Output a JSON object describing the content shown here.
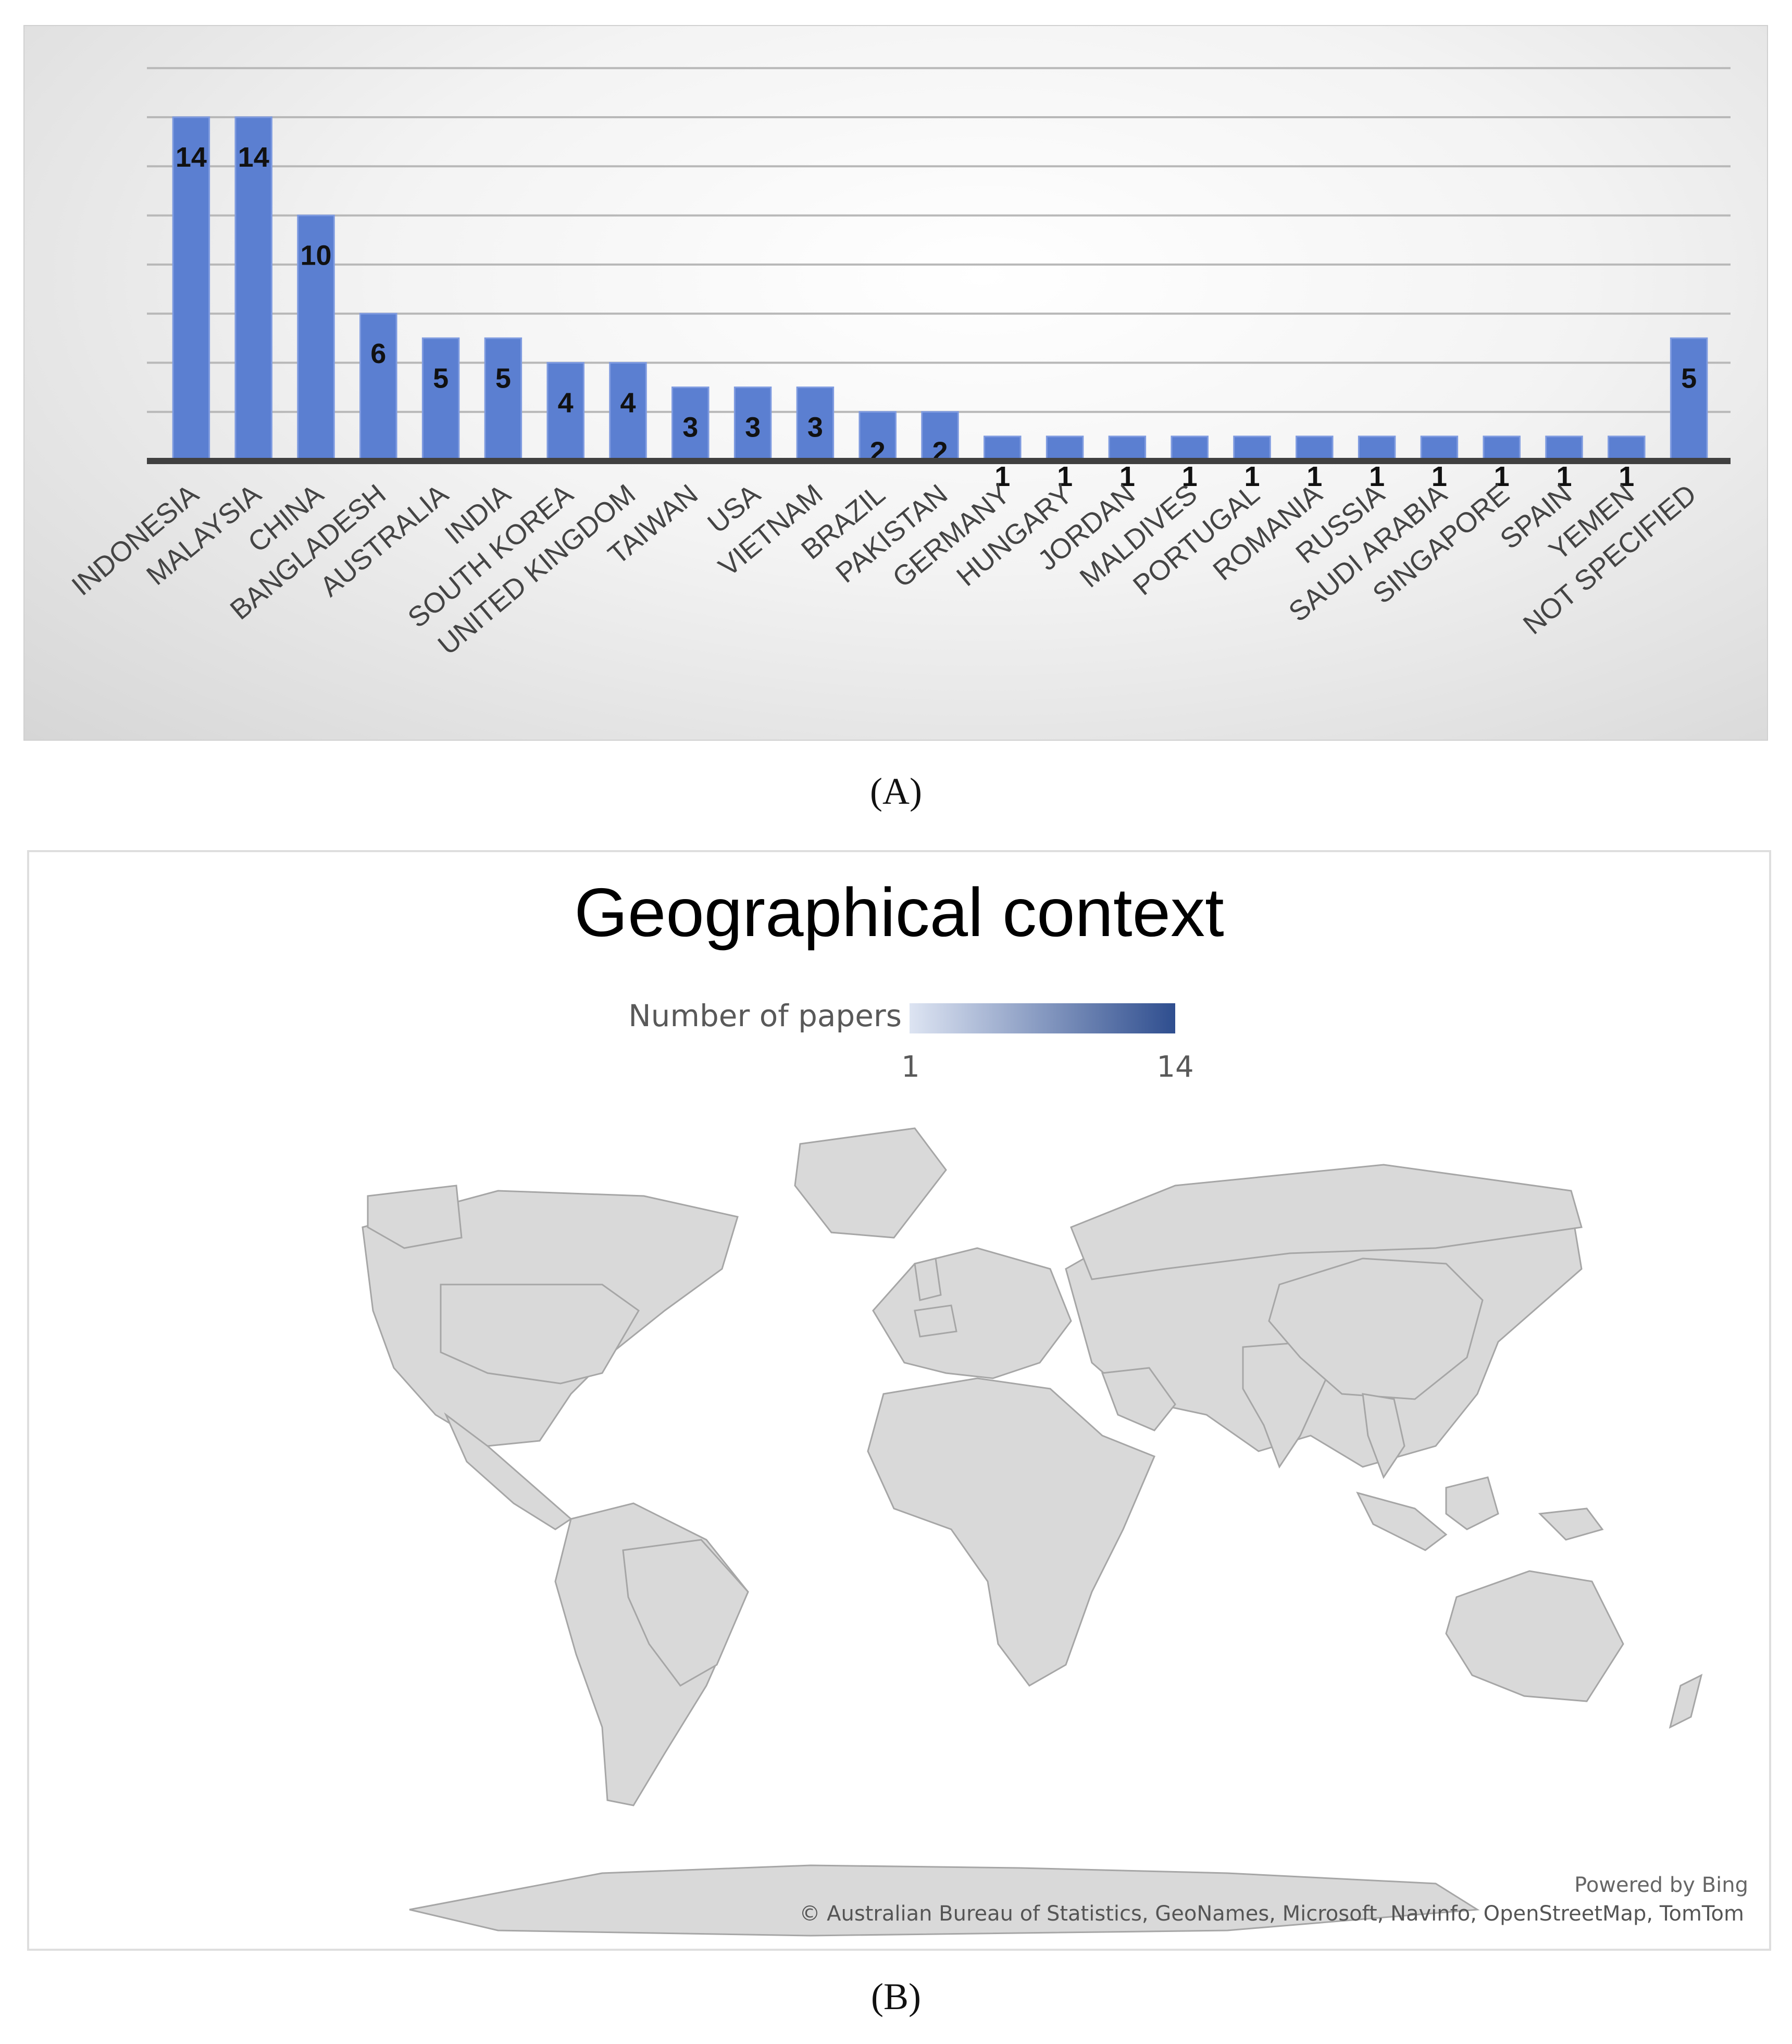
{
  "panel_a": {
    "caption": "(A)"
  },
  "panel_b": {
    "caption": "(B)",
    "title": "Geographical context",
    "legend": {
      "label": "Number of papers",
      "min": "1",
      "max": "14",
      "color_low": "#dde4f2",
      "color_high": "#2f4e8f"
    },
    "powered_by": "Powered by Bing",
    "credits": "© Australian Bureau of Statistics, GeoNames, Microsoft, Navinfo, OpenStreetMap, TomTom",
    "regions": [
      {
        "name": "INDONESIA",
        "value": 14
      },
      {
        "name": "MALAYSIA",
        "value": 14
      },
      {
        "name": "CHINA",
        "value": 10
      },
      {
        "name": "BANGLADESH",
        "value": 6
      },
      {
        "name": "AUSTRALIA",
        "value": 5
      },
      {
        "name": "INDIA",
        "value": 5
      },
      {
        "name": "SOUTH KOREA",
        "value": 4
      },
      {
        "name": "UNITED KINGDOM",
        "value": 4
      },
      {
        "name": "TAIWAN",
        "value": 3
      },
      {
        "name": "USA",
        "value": 3
      },
      {
        "name": "VIETNAM",
        "value": 3
      },
      {
        "name": "BRAZIL",
        "value": 2
      },
      {
        "name": "PAKISTAN",
        "value": 2
      },
      {
        "name": "RUSSIA",
        "value": 1
      },
      {
        "name": "SAUDI ARABIA",
        "value": 1
      },
      {
        "name": "YEMEN",
        "value": 1
      },
      {
        "name": "SPAIN",
        "value": 1
      }
    ]
  },
  "chart_data": {
    "type": "bar",
    "title": "",
    "xlabel": "",
    "ylabel": "",
    "ylim": [
      0,
      14
    ],
    "grid": true,
    "bar_color": "#5b7fd1",
    "categories": [
      "INDONESIA",
      "MALAYSIA",
      "CHINA",
      "BANGLADESH",
      "AUSTRALIA",
      "INDIA",
      "SOUTH KOREA",
      "UNITED KINGDOM",
      "TAIWAN",
      "USA",
      "VIETNAM",
      "BRAZIL",
      "PAKISTAN",
      "GERMANY",
      "HUNGARY",
      "JORDAN",
      "MALDIVES",
      "PORTUGAL",
      "ROMANIA",
      "RUSSIA",
      "SAUDI ARABIA",
      "SINGAPORE",
      "SPAIN",
      "YEMEN",
      "NOT SPECIFIED"
    ],
    "values": [
      14,
      14,
      10,
      6,
      5,
      5,
      4,
      4,
      3,
      3,
      3,
      2,
      2,
      1,
      1,
      1,
      1,
      1,
      1,
      1,
      1,
      1,
      1,
      1,
      5
    ],
    "data_labels": [
      "14",
      "14",
      "10",
      "6",
      "5",
      "5",
      "4",
      "4",
      "3",
      "3",
      "3",
      "2",
      "2",
      "1",
      "1",
      "1",
      "1",
      "1",
      "1",
      "1",
      "1",
      "1",
      "1",
      "1",
      "5"
    ]
  }
}
